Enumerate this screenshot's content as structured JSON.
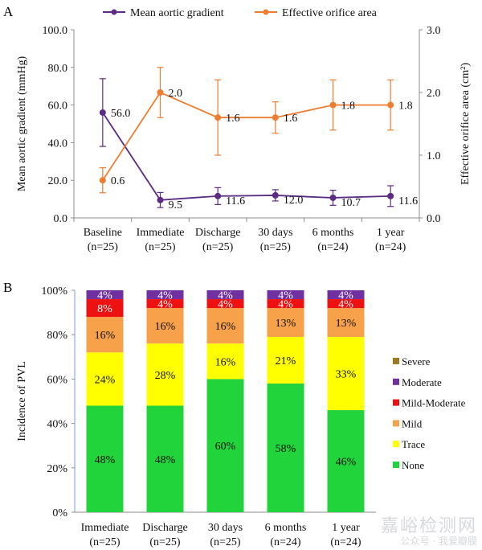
{
  "panels": {
    "a_label": "A",
    "b_label": "B"
  },
  "watermark": {
    "brand": "嘉峪检测网",
    "account": "公众号 · 我爱瓣膜"
  },
  "chart_data": [
    {
      "type": "line",
      "categories": [
        "Baseline",
        "Immediate",
        "Discharge",
        "30 days",
        "6 months",
        "1 year"
      ],
      "category_subtitles": [
        "(n=25)",
        "(n=25)",
        "(n=25)",
        "(n=25)",
        "(n=24)",
        "(n=24)"
      ],
      "ylabel": "Mean aortic gradient (mmHg)",
      "y2label": "Effective orifice area (cm²)",
      "ylim": [
        0,
        100
      ],
      "yticks": [
        "0.0",
        "20.0",
        "40.0",
        "60.0",
        "80.0",
        "100.0"
      ],
      "y2lim": [
        0,
        3
      ],
      "y2ticks": [
        "0.0",
        "1.0",
        "2.0",
        "3.0"
      ],
      "legend_position": "top",
      "series": [
        {
          "name": "Mean aortic gradient",
          "axis": "left",
          "color": "#5b2c83",
          "values": [
            56.0,
            9.5,
            11.6,
            12.0,
            10.7,
            11.6
          ],
          "error": [
            18,
            4,
            4.5,
            3,
            4,
            5.5
          ],
          "labels": [
            "56.0",
            "9.5",
            "11.6",
            "12.0",
            "10.7",
            "11.6"
          ]
        },
        {
          "name": "Effective orifice area",
          "axis": "right",
          "color": "#ed7d31",
          "values": [
            0.6,
            2.0,
            1.6,
            1.6,
            1.8,
            1.8
          ],
          "error": [
            0.2,
            0.4,
            0.6,
            0.25,
            0.4,
            0.4
          ],
          "labels": [
            "0.6",
            "2.0",
            "1.6",
            "1.6",
            "1.8",
            "1.8"
          ]
        }
      ]
    },
    {
      "type": "bar",
      "stacked": true,
      "categories": [
        "Immediate",
        "Discharge",
        "30 days",
        "6 months",
        "1 year"
      ],
      "category_subtitles": [
        "(n=25)",
        "(n=25)",
        "(n=25)",
        "(n=24)",
        "(n=24)"
      ],
      "ylabel": "Incidence of PVL",
      "ylim": [
        0,
        100
      ],
      "yticks": [
        "0%",
        "20%",
        "40%",
        "60%",
        "80%",
        "100%"
      ],
      "legend_position": "right",
      "series": [
        {
          "name": "None",
          "color": "#22d43b",
          "values": [
            48,
            48,
            60,
            58,
            46
          ],
          "labels": [
            "48%",
            "48%",
            "60%",
            "58%",
            "46%"
          ]
        },
        {
          "name": "Trace",
          "color": "#ffff00",
          "values": [
            24,
            28,
            16,
            21,
            33
          ],
          "labels": [
            "24%",
            "28%",
            "16%",
            "21%",
            "33%"
          ]
        },
        {
          "name": "Mild",
          "color": "#f7a14a",
          "values": [
            16,
            16,
            16,
            13,
            13
          ],
          "labels": [
            "16%",
            "16%",
            "16%",
            "13%",
            "13%"
          ]
        },
        {
          "name": "Mild-Moderate",
          "color": "#ee1111",
          "values": [
            8,
            4,
            4,
            4,
            4
          ],
          "labels": [
            "8%",
            "4%",
            "4%",
            "4%",
            "4%"
          ]
        },
        {
          "name": "Moderate",
          "color": "#7030a0",
          "values": [
            4,
            4,
            4,
            4,
            4
          ],
          "labels": [
            "4%",
            "4%",
            "4%",
            "4%",
            "4%"
          ]
        },
        {
          "name": "Severe",
          "color": "#a07820",
          "values": [
            0,
            0,
            0,
            0,
            0
          ],
          "labels": [
            "",
            "",
            "",
            "",
            ""
          ]
        }
      ]
    }
  ]
}
